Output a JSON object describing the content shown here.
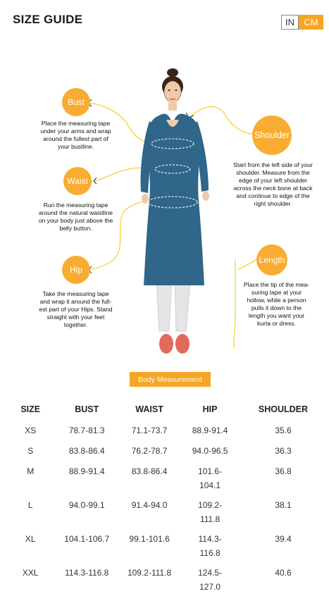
{
  "header": {
    "title": "SIZE GUIDE"
  },
  "unit_toggle": {
    "in_label": "IN",
    "cm_label": "CM",
    "selected": "CM",
    "accent": "#f5a623"
  },
  "guide": {
    "bust": {
      "label": "Bust",
      "text": [
        "Place the measuring tape",
        "under your arms and wrap",
        "around the fullest part of",
        "your bustline."
      ]
    },
    "waist": {
      "label": "Waist",
      "text": [
        "Run the measuring tape",
        "around the natural waistline",
        "on your body just above the",
        "belly button."
      ]
    },
    "hip": {
      "label": "Hip",
      "text": [
        "Take the measuring tape",
        "and wrap it around the full-",
        "est part of your Hips. Stand",
        "straight with your feet",
        "together."
      ]
    },
    "shoulder": {
      "label": "Shoulder",
      "text": [
        "Start from the left side of your",
        "shoulder. Measure from the",
        "edge of your left shoulder",
        "across the neck bone at back",
        "and continue to edge of the",
        "right shoulder."
      ]
    },
    "length": {
      "label": "Length",
      "text": [
        "Place the tip of the mea-",
        "suring tape at your",
        "hollow, while a person",
        "pulls it down to the",
        "length you want your",
        "kurta or dress."
      ]
    }
  },
  "section": {
    "label": "Body Measurement"
  },
  "table": {
    "headers": [
      "SIZE",
      "BUST",
      "WAIST",
      "HIP",
      "SHOULDER"
    ],
    "rows": [
      {
        "size": "XS",
        "bust": "78.7-81.3",
        "waist": "71.1-73.7",
        "hip1": "88.9-91.4",
        "hip2": "",
        "shoulder": "35.6"
      },
      {
        "size": "S",
        "bust": "83.8-86.4",
        "waist": "76.2-78.7",
        "hip1": "94.0-96.5",
        "hip2": "",
        "shoulder": "36.3"
      },
      {
        "size": "M",
        "bust": "88.9-91.4",
        "waist": "83.8-86.4",
        "hip1": "101.6-",
        "hip2": "104.1",
        "shoulder": "36.8"
      },
      {
        "size": "L",
        "bust": "94.0-99.1",
        "waist": "91.4-94.0",
        "hip1": "109.2-",
        "hip2": "111.8",
        "shoulder": "38.1"
      },
      {
        "size": "XL",
        "bust": "104.1-106.7",
        "waist": "99.1-101.6",
        "hip1": "114.3-",
        "hip2": "116.8",
        "shoulder": "39.4"
      },
      {
        "size": "XXL",
        "bust": "114.3-116.8",
        "waist": "109.2-111.8",
        "hip1": "124.5-",
        "hip2": "127.0",
        "shoulder": "40.6"
      }
    ]
  }
}
